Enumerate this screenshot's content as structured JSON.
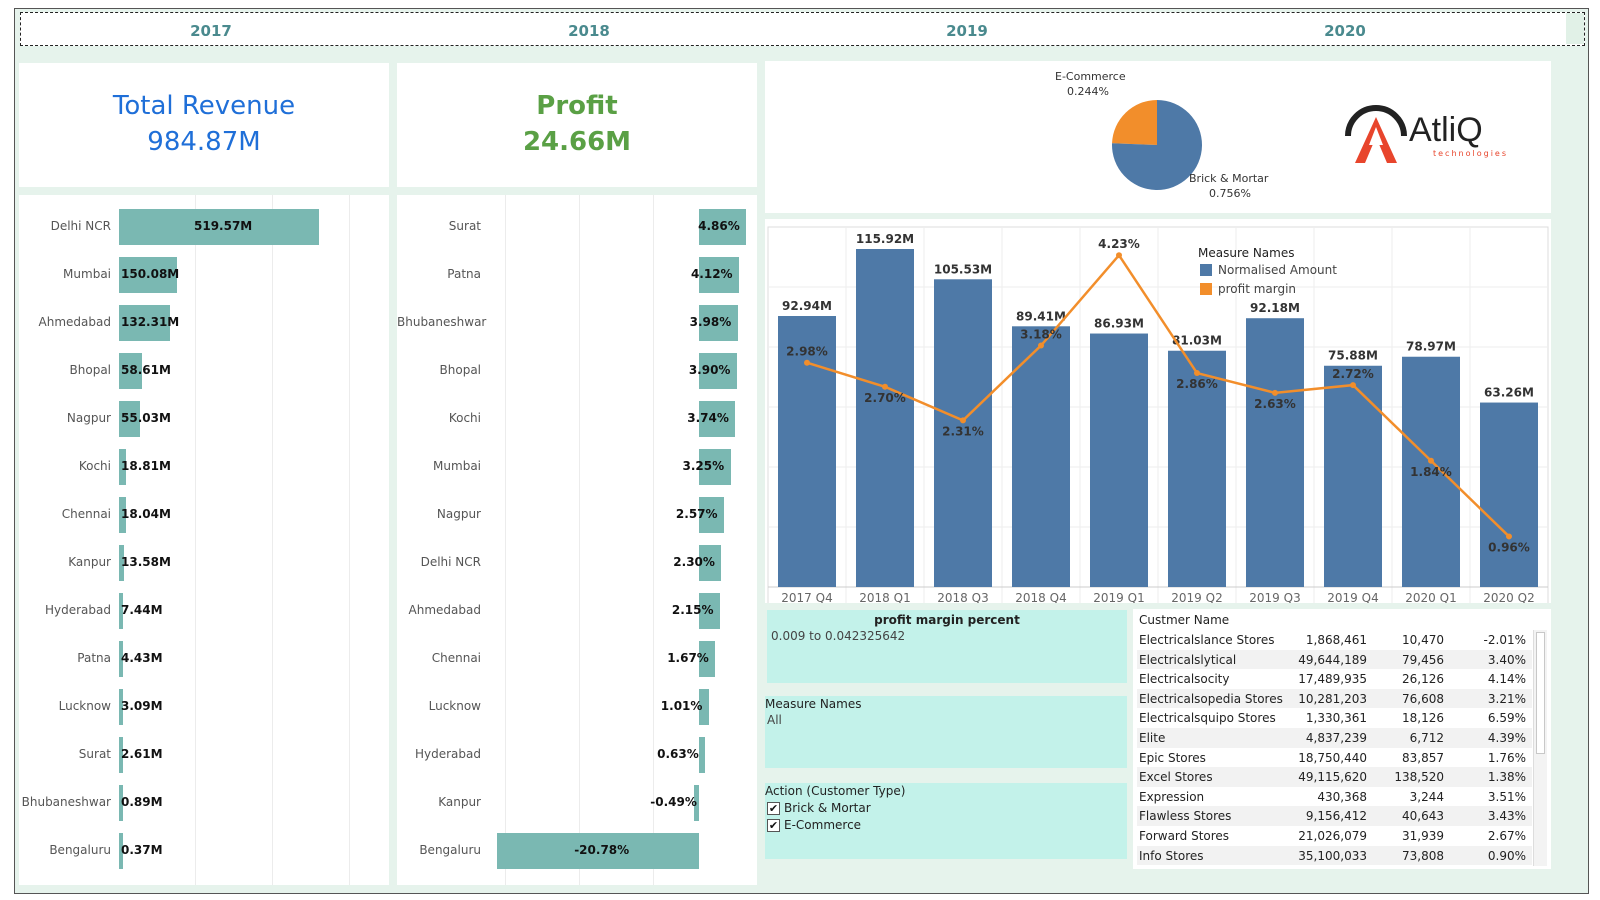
{
  "years": [
    "2017",
    "2018",
    "2019",
    "2020"
  ],
  "kpi": {
    "revenue_title": "Total Revenue",
    "revenue_value": "984.87M",
    "profit_title": "Profit",
    "profit_value": "24.66M",
    "revenue_color": "#1f6fd8",
    "profit_color": "#5aa045"
  },
  "revenue_by_city": [
    {
      "city": "Delhi NCR",
      "label": "519.57M",
      "value": 519.57
    },
    {
      "city": "Mumbai",
      "label": "150.08M",
      "value": 150.08
    },
    {
      "city": "Ahmedabad",
      "label": "132.31M",
      "value": 132.31
    },
    {
      "city": "Bhopal",
      "label": "58.61M",
      "value": 58.61
    },
    {
      "city": "Nagpur",
      "label": "55.03M",
      "value": 55.03
    },
    {
      "city": "Kochi",
      "label": "18.81M",
      "value": 18.81
    },
    {
      "city": "Chennai",
      "label": "18.04M",
      "value": 18.04
    },
    {
      "city": "Kanpur",
      "label": "13.58M",
      "value": 13.58
    },
    {
      "city": "Hyderabad",
      "label": "7.44M",
      "value": 7.44
    },
    {
      "city": "Patna",
      "label": "4.43M",
      "value": 4.43
    },
    {
      "city": "Lucknow",
      "label": "3.09M",
      "value": 3.09
    },
    {
      "city": "Surat",
      "label": "2.61M",
      "value": 2.61
    },
    {
      "city": "Bhubaneshwar",
      "label": "0.89M",
      "value": 0.89
    },
    {
      "city": "Bengaluru",
      "label": "0.37M",
      "value": 0.37
    }
  ],
  "profit_by_city": [
    {
      "city": "Surat",
      "label": "4.86%",
      "value": 4.86
    },
    {
      "city": "Patna",
      "label": "4.12%",
      "value": 4.12
    },
    {
      "city": "Bhubaneshwar",
      "label": "3.98%",
      "value": 3.98
    },
    {
      "city": "Bhopal",
      "label": "3.90%",
      "value": 3.9
    },
    {
      "city": "Kochi",
      "label": "3.74%",
      "value": 3.74
    },
    {
      "city": "Mumbai",
      "label": "3.25%",
      "value": 3.25
    },
    {
      "city": "Nagpur",
      "label": "2.57%",
      "value": 2.57
    },
    {
      "city": "Delhi NCR",
      "label": "2.30%",
      "value": 2.3
    },
    {
      "city": "Ahmedabad",
      "label": "2.15%",
      "value": 2.15
    },
    {
      "city": "Chennai",
      "label": "1.67%",
      "value": 1.67
    },
    {
      "city": "Lucknow",
      "label": "1.01%",
      "value": 1.01
    },
    {
      "city": "Hyderabad",
      "label": "0.63%",
      "value": 0.63
    },
    {
      "city": "Kanpur",
      "label": "-0.49%",
      "value": -0.49
    },
    {
      "city": "Bengaluru",
      "label": "-20.78%",
      "value": -20.78
    }
  ],
  "pie": {
    "slices": [
      {
        "name": "E-Commerce",
        "label": "0.244%",
        "value": 0.244,
        "color": "#f28e2b"
      },
      {
        "name": "Brick & Mortar",
        "label": "0.756%",
        "value": 0.756,
        "color": "#4e79a7"
      }
    ]
  },
  "logo": {
    "name": "AtliQ",
    "tagline": "technologies"
  },
  "chart_data": {
    "type": "bar",
    "categories": [
      "2017 Q4",
      "2018 Q1",
      "2018 Q3",
      "2018 Q4",
      "2019 Q1",
      "2019 Q2",
      "2019 Q3",
      "2019 Q4",
      "2020 Q1",
      "2020 Q2"
    ],
    "legend_title": "Measure Names",
    "series": [
      {
        "name": "Normalised Amount",
        "type": "bar",
        "color": "#4e79a7",
        "values": [
          92.94,
          115.92,
          105.53,
          89.41,
          86.93,
          81.03,
          92.18,
          75.88,
          78.97,
          63.26
        ],
        "labels": [
          "92.94M",
          "115.92M",
          "105.53M",
          "89.41M",
          "86.93M",
          "81.03M",
          "92.18M",
          "75.88M",
          "78.97M",
          "63.26M"
        ]
      },
      {
        "name": "profit margin",
        "type": "line",
        "color": "#f28e2b",
        "values": [
          2.98,
          2.7,
          2.31,
          3.18,
          4.23,
          2.86,
          2.63,
          2.72,
          1.84,
          0.96
        ],
        "labels": [
          "2.98%",
          "2.70%",
          "2.31%",
          "3.18%",
          "4.23%",
          "2.86%",
          "2.63%",
          "2.72%",
          "1.84%",
          "0.96%"
        ]
      }
    ],
    "legend_placement": "top-right",
    "grid": true
  },
  "filters": {
    "profit_margin_title": "profit margin percent",
    "profit_margin_range": "0.009 to 0.042325642",
    "measure_names_title": "Measure Names",
    "measure_names_value": "All",
    "action_title": "Action (Customer Type)",
    "action_options": [
      "Brick & Mortar",
      "E-Commerce"
    ],
    "check_mark": "✔"
  },
  "customers": {
    "header": "Custmer Name",
    "rows": [
      {
        "name": "Electricalslance Stores",
        "a": "1,868,461",
        "b": "10,470",
        "c": "-2.01%"
      },
      {
        "name": "Electricalslytical",
        "a": "49,644,189",
        "b": "79,456",
        "c": "3.40%"
      },
      {
        "name": "Electricalsocity",
        "a": "17,489,935",
        "b": "26,126",
        "c": "4.14%"
      },
      {
        "name": "Electricalsopedia Stores",
        "a": "10,281,203",
        "b": "76,608",
        "c": "3.21%"
      },
      {
        "name": "Electricalsquipo Stores",
        "a": "1,330,361",
        "b": "18,126",
        "c": "6.59%"
      },
      {
        "name": "Elite",
        "a": "4,837,239",
        "b": "6,712",
        "c": "4.39%"
      },
      {
        "name": "Epic Stores",
        "a": "18,750,440",
        "b": "83,857",
        "c": "1.76%"
      },
      {
        "name": "Excel Stores",
        "a": "49,115,620",
        "b": "138,520",
        "c": "1.38%"
      },
      {
        "name": "Expression",
        "a": "430,368",
        "b": "3,244",
        "c": "3.51%"
      },
      {
        "name": "Flawless Stores",
        "a": "9,156,412",
        "b": "40,643",
        "c": "3.43%"
      },
      {
        "name": "Forward Stores",
        "a": "21,026,079",
        "b": "31,939",
        "c": "2.67%"
      },
      {
        "name": "Info Stores",
        "a": "35,100,033",
        "b": "73,808",
        "c": "0.90%"
      }
    ]
  }
}
